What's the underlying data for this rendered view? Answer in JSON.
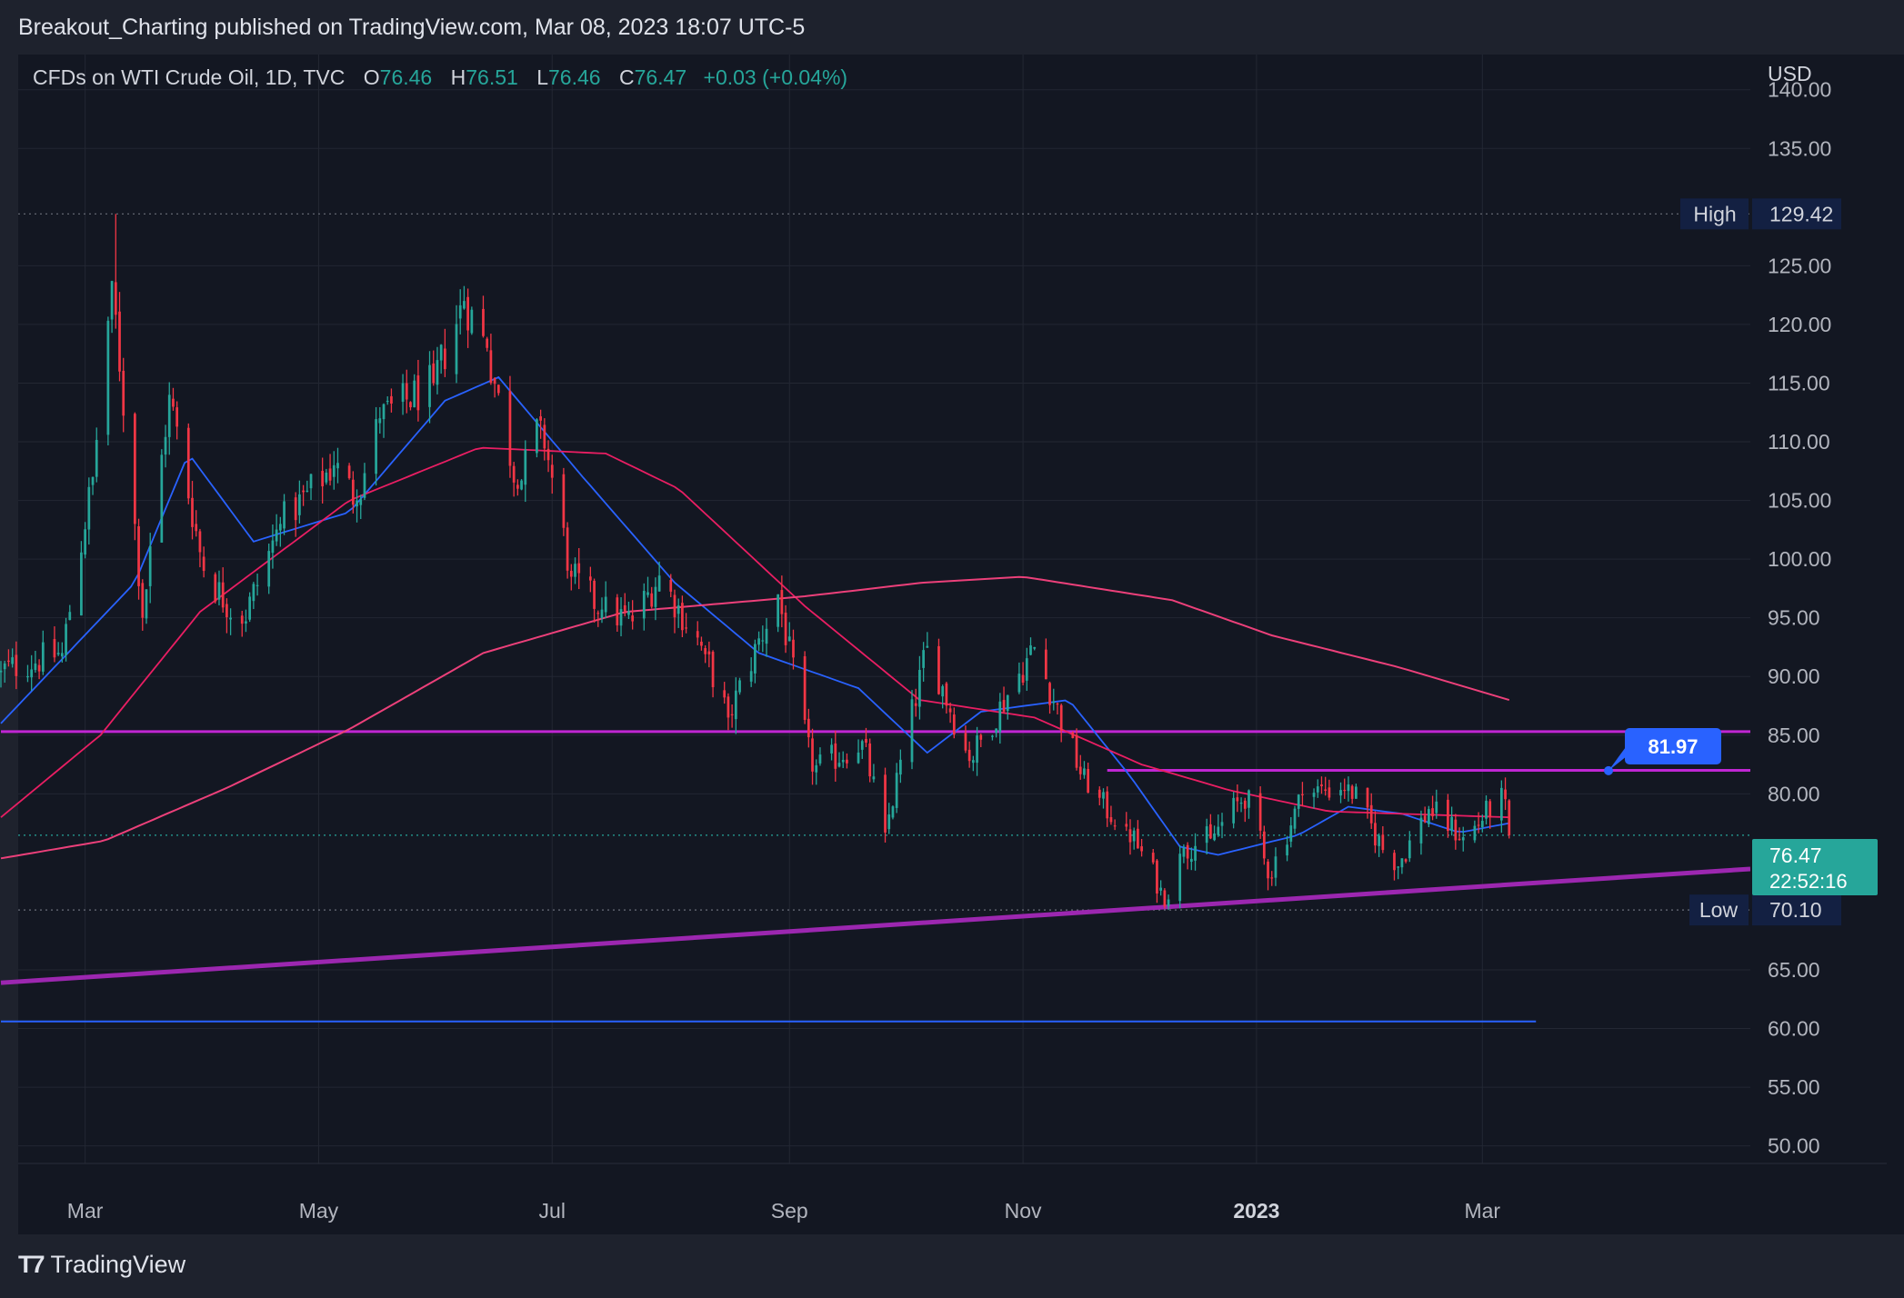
{
  "header": {
    "published_by": "Breakout_Charting published on TradingView.com, Mar 08, 2023 18:07 UTC-5"
  },
  "legend": {
    "symbol": "CFDs on WTI Crude Oil, 1D, TVC",
    "o_label": "O",
    "o_value": "76.46",
    "h_label": "H",
    "h_value": "76.51",
    "l_label": "L",
    "l_value": "76.46",
    "c_label": "C",
    "c_value": "76.47",
    "change": "+0.03 (+0.04%)"
  },
  "footer": {
    "brand": "TradingView"
  },
  "colors": {
    "background": "#131722",
    "up": "#26a69a",
    "down": "#f23645",
    "ma_fast": "#2962ff",
    "ma_mid": "#e91e63",
    "ma_slow": "#ec407a",
    "levels": "#c026d3",
    "trend": "#9c27b0",
    "support": "#2962ff",
    "axis_text": "#b2b5be",
    "last_price": "#26a69a",
    "marker_bg": "#132042"
  },
  "chart_data": {
    "type": "candlestick",
    "instrument": "CFDs on WTI Crude Oil",
    "timeframe": "1D",
    "currency": "USD",
    "ylim": [
      48.5,
      143
    ],
    "y_ticks": [
      "140.00",
      "135.00",
      "125.00",
      "120.00",
      "115.00",
      "110.00",
      "105.00",
      "100.00",
      "95.00",
      "90.00",
      "85.00",
      "80.00",
      "65.00",
      "60.00",
      "55.00",
      "50.00"
    ],
    "x_ticks": [
      {
        "label": "Mar",
        "date": "2022-03-01",
        "bold": false
      },
      {
        "label": "May",
        "date": "2022-05-01",
        "bold": false
      },
      {
        "label": "Jul",
        "date": "2022-07-01",
        "bold": false
      },
      {
        "label": "Sep",
        "date": "2022-09-01",
        "bold": false
      },
      {
        "label": "Nov",
        "date": "2022-11-01",
        "bold": false
      },
      {
        "label": "2023",
        "date": "2023-01-01",
        "bold": true
      },
      {
        "label": "Mar",
        "date": "2023-03-01",
        "bold": false
      }
    ],
    "x_range": [
      "2022-02-07",
      "2023-05-10"
    ],
    "high_marker": {
      "label": "High",
      "value": 129.42
    },
    "low_marker": {
      "label": "Low",
      "value": 70.1
    },
    "last_price": {
      "value": 76.47,
      "countdown": "22:52:16"
    },
    "callout": {
      "value": "81.97"
    },
    "horizontal_levels": [
      {
        "value": 85.3,
        "from": "2022-02-07",
        "to": "2023-05-10"
      },
      {
        "value": 82.0,
        "from": "2022-11-23",
        "to": "2023-05-10"
      }
    ],
    "support_line": {
      "value": 60.6,
      "from": "2022-02-07",
      "to": "2023-03-15"
    },
    "trend_line": {
      "start": {
        "date": "2022-02-07",
        "value": 63.9
      },
      "end": {
        "date": "2023-05-10",
        "value": 73.6
      }
    },
    "close_anchors": [
      [
        "2022-02-07",
        90.5
      ],
      [
        "2022-02-23",
        92.0
      ],
      [
        "2022-03-03",
        107.0
      ],
      [
        "2022-03-08",
        123.7
      ],
      [
        "2022-03-14",
        103.0
      ],
      [
        "2022-03-16",
        95.0
      ],
      [
        "2022-03-23",
        114.0
      ],
      [
        "2022-04-01",
        99.0
      ],
      [
        "2022-04-11",
        94.5
      ],
      [
        "2022-04-21",
        103.0
      ],
      [
        "2022-05-05",
        108.0
      ],
      [
        "2022-05-11",
        105.0
      ],
      [
        "2022-05-17",
        112.0
      ],
      [
        "2022-05-31",
        115.0
      ],
      [
        "2022-06-08",
        122.0
      ],
      [
        "2022-06-14",
        118.0
      ],
      [
        "2022-06-22",
        106.0
      ],
      [
        "2022-06-28",
        111.8
      ],
      [
        "2022-07-06",
        98.5
      ],
      [
        "2022-07-14",
        95.7
      ],
      [
        "2022-07-22",
        94.7
      ],
      [
        "2022-07-29",
        98.6
      ],
      [
        "2022-08-10",
        91.9
      ],
      [
        "2022-08-16",
        86.5
      ],
      [
        "2022-08-29",
        97.0
      ],
      [
        "2022-09-07",
        81.9
      ],
      [
        "2022-09-20",
        84.5
      ],
      [
        "2022-09-26",
        76.7
      ],
      [
        "2022-10-07",
        92.6
      ],
      [
        "2022-10-18",
        82.8
      ],
      [
        "2022-11-04",
        92.5
      ],
      [
        "2022-11-18",
        80.1
      ],
      [
        "2022-11-28",
        77.2
      ],
      [
        "2022-12-07",
        72.0
      ],
      [
        "2022-12-09",
        71.0
      ],
      [
        "2022-12-13",
        75.4
      ],
      [
        "2022-12-20",
        76.2
      ],
      [
        "2022-12-30",
        80.3
      ],
      [
        "2023-01-04",
        72.8
      ],
      [
        "2023-01-13",
        79.9
      ],
      [
        "2023-01-25",
        80.8
      ],
      [
        "2023-02-06",
        73.5
      ],
      [
        "2023-02-15",
        78.7
      ],
      [
        "2023-02-24",
        76.3
      ],
      [
        "2023-03-01",
        77.7
      ],
      [
        "2023-03-06",
        80.5
      ],
      [
        "2023-03-08",
        76.5
      ]
    ],
    "moving_averages": [
      {
        "name": "fast",
        "color": "#2962ff",
        "anchors": [
          [
            "2022-02-07",
            86.0
          ],
          [
            "2022-03-14",
            98.0
          ],
          [
            "2022-03-28",
            109.0
          ],
          [
            "2022-04-14",
            101.5
          ],
          [
            "2022-05-09",
            104.0
          ],
          [
            "2022-06-03",
            113.5
          ],
          [
            "2022-06-17",
            115.5
          ],
          [
            "2022-07-09",
            107.0
          ],
          [
            "2022-08-02",
            98.0
          ],
          [
            "2022-08-24",
            92.0
          ],
          [
            "2022-09-19",
            89.0
          ],
          [
            "2022-10-07",
            83.5
          ],
          [
            "2022-10-21",
            87.0
          ],
          [
            "2022-11-13",
            88.0
          ],
          [
            "2022-11-29",
            81.5
          ],
          [
            "2022-12-12",
            75.5
          ],
          [
            "2022-12-22",
            74.8
          ],
          [
            "2023-01-12",
            76.5
          ],
          [
            "2023-01-25",
            78.9
          ],
          [
            "2023-02-08",
            78.3
          ],
          [
            "2023-02-23",
            76.7
          ],
          [
            "2023-03-08",
            77.5
          ]
        ]
      },
      {
        "name": "mid",
        "color": "#e91e63",
        "anchors": [
          [
            "2022-02-07",
            78.0
          ],
          [
            "2022-03-05",
            85.0
          ],
          [
            "2022-03-31",
            95.5
          ],
          [
            "2022-05-09",
            105.0
          ],
          [
            "2022-06-12",
            109.5
          ],
          [
            "2022-07-15",
            109.0
          ],
          [
            "2022-08-03",
            106.0
          ],
          [
            "2022-09-05",
            96.0
          ],
          [
            "2022-10-05",
            88.0
          ],
          [
            "2022-11-04",
            86.5
          ],
          [
            "2022-12-02",
            82.5
          ],
          [
            "2022-12-25",
            80.3
          ],
          [
            "2023-01-20",
            78.5
          ],
          [
            "2023-03-08",
            78.0
          ]
        ]
      },
      {
        "name": "slow",
        "color": "#ec407a",
        "anchors": [
          [
            "2022-02-07",
            74.5
          ],
          [
            "2022-03-06",
            76.0
          ],
          [
            "2022-04-07",
            80.5
          ],
          [
            "2022-05-09",
            85.5
          ],
          [
            "2022-06-13",
            92.0
          ],
          [
            "2022-07-20",
            95.5
          ],
          [
            "2022-09-04",
            96.8
          ],
          [
            "2022-10-06",
            98.0
          ],
          [
            "2022-11-01",
            98.5
          ],
          [
            "2022-12-10",
            96.5
          ],
          [
            "2023-01-05",
            93.5
          ],
          [
            "2023-02-07",
            90.8
          ],
          [
            "2023-03-08",
            88.0
          ]
        ]
      }
    ]
  }
}
